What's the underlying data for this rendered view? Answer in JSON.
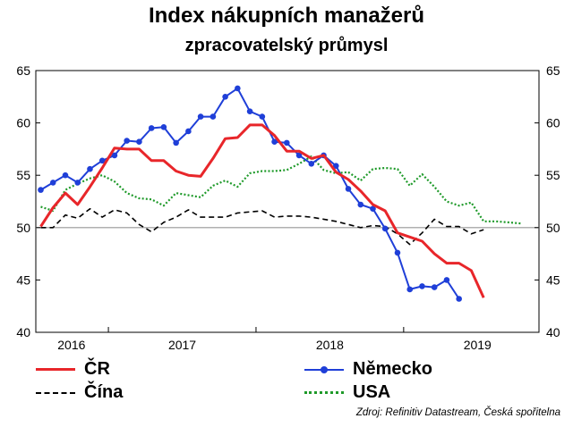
{
  "title": "Index nákupních manažerů",
  "subtitle": "zpracovatelský průmysl",
  "source": "Zdroj: Refinitiv Datastream, Česká spořitelna",
  "colors": {
    "cr": "#e8262a",
    "nemecko": "#1f3fd8",
    "cina": "#000000",
    "usa": "#1f9a2a",
    "refline": "#b0b0b0"
  },
  "chart_data": {
    "type": "line",
    "title": "Index nákupních manažerů",
    "subtitle": "zpracovatelský průmysl",
    "x_start": "2016-01",
    "x_range": [
      -0.4,
      40.5
    ],
    "ylim": [
      40,
      65
    ],
    "yticks": [
      40,
      45,
      50,
      55,
      60,
      65
    ],
    "reference_line": 50,
    "grid": false,
    "legend_position": "bottom",
    "year_labels": [
      {
        "label": "2016",
        "x": 2.5
      },
      {
        "label": "2017",
        "x": 11.5
      },
      {
        "label": "2018",
        "x": 23.5
      },
      {
        "label": "2019",
        "x": 35.5
      }
    ],
    "year_ticks": [
      5.5,
      17.5,
      29.5
    ],
    "series": [
      {
        "key": "nemecko",
        "name": "Německo",
        "style": "solid-markers",
        "x_offset": 0,
        "values": [
          53.6,
          54.3,
          55.0,
          54.3,
          55.6,
          56.4,
          56.9,
          58.3,
          58.2,
          59.5,
          59.6,
          58.1,
          59.2,
          60.6,
          60.6,
          62.5,
          63.3,
          61.1,
          60.6,
          58.2,
          58.1,
          56.9,
          56.1,
          56.9,
          55.9,
          53.7,
          52.2,
          51.8,
          49.9,
          47.6,
          44.1,
          44.4,
          44.3,
          45.0,
          43.2
        ]
      },
      {
        "key": "cr",
        "name": "ČR",
        "style": "solid-thick",
        "x_offset": 0,
        "values": [
          50.1,
          51.9,
          53.3,
          52.2,
          53.9,
          55.7,
          57.6,
          57.5,
          57.5,
          56.4,
          56.4,
          55.4,
          55.0,
          54.9,
          56.6,
          58.5,
          58.6,
          59.8,
          59.8,
          58.8,
          57.3,
          57.3,
          56.6,
          56.9,
          55.3,
          54.6,
          53.5,
          52.2,
          51.6,
          49.5,
          49.1,
          48.7,
          47.5,
          46.6,
          46.6,
          45.9,
          43.3
        ]
      },
      {
        "key": "cina",
        "name": "Čína",
        "style": "dashed",
        "x_offset": 0,
        "values": [
          50.0,
          50.0,
          51.2,
          50.9,
          51.8,
          51.0,
          51.7,
          51.4,
          50.3,
          49.6,
          50.5,
          51.0,
          51.7,
          51.0,
          51.0,
          51.0,
          51.4,
          51.5,
          51.6,
          51.0,
          51.1,
          51.1,
          51.0,
          50.8,
          50.6,
          50.3,
          50.0,
          50.2,
          50.1,
          49.4,
          48.4,
          49.5,
          50.8,
          50.1,
          50.1,
          49.4,
          49.8
        ]
      },
      {
        "key": "usa",
        "name": "USA",
        "style": "dotted",
        "x_offset": 0,
        "values": [
          52.0,
          51.6,
          53.6,
          54.2,
          54.7,
          55.0,
          54.4,
          53.3,
          52.8,
          52.7,
          52.1,
          53.3,
          53.1,
          52.9,
          54.0,
          54.5,
          53.9,
          55.2,
          55.4,
          55.4,
          55.5,
          56.1,
          56.8,
          55.5,
          55.2,
          55.3,
          54.5,
          55.6,
          55.7,
          55.6,
          54.0,
          55.1,
          53.9,
          52.5,
          52.1,
          52.4,
          50.6,
          50.6,
          50.5,
          50.4
        ]
      }
    ],
    "legend": [
      {
        "key": "cr",
        "label": "ČR"
      },
      {
        "key": "nemecko",
        "label": "Německo"
      },
      {
        "key": "cina",
        "label": "Čína"
      },
      {
        "key": "usa",
        "label": "USA"
      }
    ]
  }
}
